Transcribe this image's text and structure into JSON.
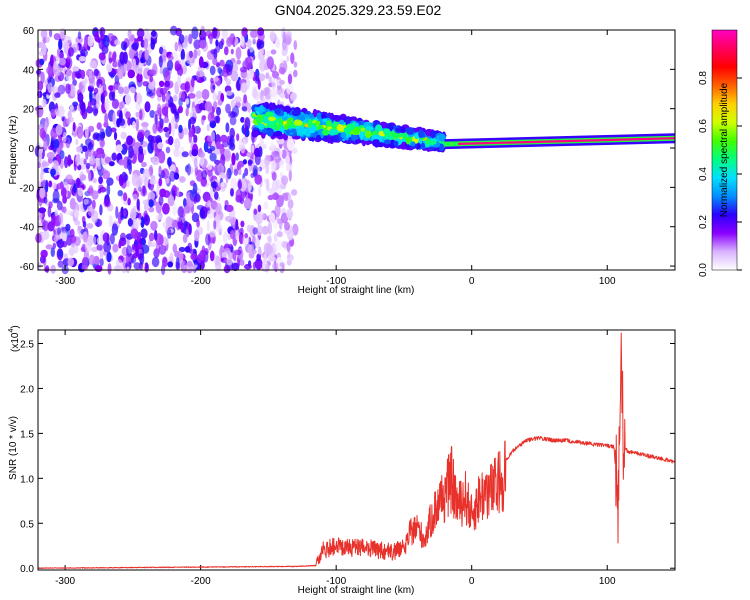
{
  "title": "GN04.2025.329.23.59.E02",
  "chart_data": [
    {
      "type": "heatmap",
      "title": "GN04.2025.329.23.59.E02",
      "xlabel": "Height of straight line (km)",
      "ylabel": "Frequency (Hz)",
      "xlim": [
        -320,
        150
      ],
      "ylim": [
        -62,
        60
      ],
      "x_ticks": [
        -300,
        -200,
        -100,
        0,
        100
      ],
      "x_tick_labels": [
        "-300",
        "-200",
        "-100",
        "0",
        "100"
      ],
      "y_ticks": [
        -60,
        -40,
        -20,
        0,
        20,
        40,
        60
      ],
      "y_tick_labels": [
        "-60",
        "-40",
        "-20",
        "0",
        "20",
        "40",
        "60"
      ],
      "colorbar": {
        "label": "Normalized spectral amplitude",
        "range": [
          0,
          1
        ],
        "ticks": [
          0.0,
          0.2,
          0.4,
          0.6,
          0.8
        ],
        "tick_labels": [
          "0.0",
          "0.2",
          "0.4",
          "0.6",
          "0.8"
        ],
        "colors": [
          "#ffffff",
          "#d9b3ff",
          "#8a00ff",
          "#2a00ff",
          "#0090ff",
          "#00e0ff",
          "#00ff80",
          "#40ff00",
          "#d0ff00",
          "#ffd000",
          "#ff6000",
          "#ff0000",
          "#ff0060",
          "#ff00c0"
        ]
      },
      "regions": [
        {
          "description": "broadband noise",
          "x_range": [
            -320,
            -140
          ],
          "y_range": [
            -62,
            60
          ],
          "amplitude": 0.12
        },
        {
          "description": "signal band",
          "x_range": [
            -160,
            -20
          ],
          "center_frequency_start": 15,
          "center_frequency_end": 3,
          "bandwidth": 16,
          "amplitude": 0.45
        },
        {
          "description": "narrow line",
          "x_range": [
            -20,
            150
          ],
          "center_frequency_start": 2,
          "center_frequency_end": 5,
          "amplitude": 0.95
        }
      ]
    },
    {
      "type": "line",
      "xlabel": "Height of straight line (km)",
      "ylabel": "SNR (10 * v/v)",
      "y_multiplier_label": "(x10",
      "y_multiplier_exp": "4",
      "color": "#e8312a",
      "xlim": [
        -320,
        150
      ],
      "ylim": [
        -0.02,
        2.65
      ],
      "x_ticks": [
        -300,
        -200,
        -100,
        0,
        100
      ],
      "x_tick_labels": [
        "-300",
        "-200",
        "-100",
        "0",
        "100"
      ],
      "y_ticks": [
        0.0,
        0.5,
        1.0,
        1.5,
        2.0,
        2.5
      ],
      "y_tick_labels": [
        "0.0",
        "0.5",
        "1.0",
        "1.5",
        "2.0",
        "2.5"
      ],
      "x": [
        -320,
        -130,
        -115,
        -110,
        -100,
        -90,
        -80,
        -70,
        -60,
        -50,
        -45,
        -40,
        -35,
        -30,
        -25,
        -20,
        -15,
        -10,
        -5,
        0,
        5,
        10,
        15,
        20,
        25,
        30,
        40,
        50,
        60,
        70,
        80,
        90,
        100,
        105,
        108,
        110,
        112,
        115,
        120,
        130,
        140,
        150
      ],
      "y": [
        0.0,
        0.02,
        0.03,
        0.2,
        0.25,
        0.22,
        0.24,
        0.2,
        0.18,
        0.22,
        0.45,
        0.5,
        0.35,
        0.6,
        0.8,
        0.9,
        1.1,
        0.75,
        0.9,
        0.65,
        0.85,
        0.95,
        0.95,
        1.05,
        1.2,
        1.3,
        1.42,
        1.45,
        1.42,
        1.42,
        1.4,
        1.38,
        1.36,
        1.35,
        0.7,
        2.6,
        1.35,
        1.3,
        1.28,
        1.25,
        1.22,
        1.18
      ]
    }
  ]
}
